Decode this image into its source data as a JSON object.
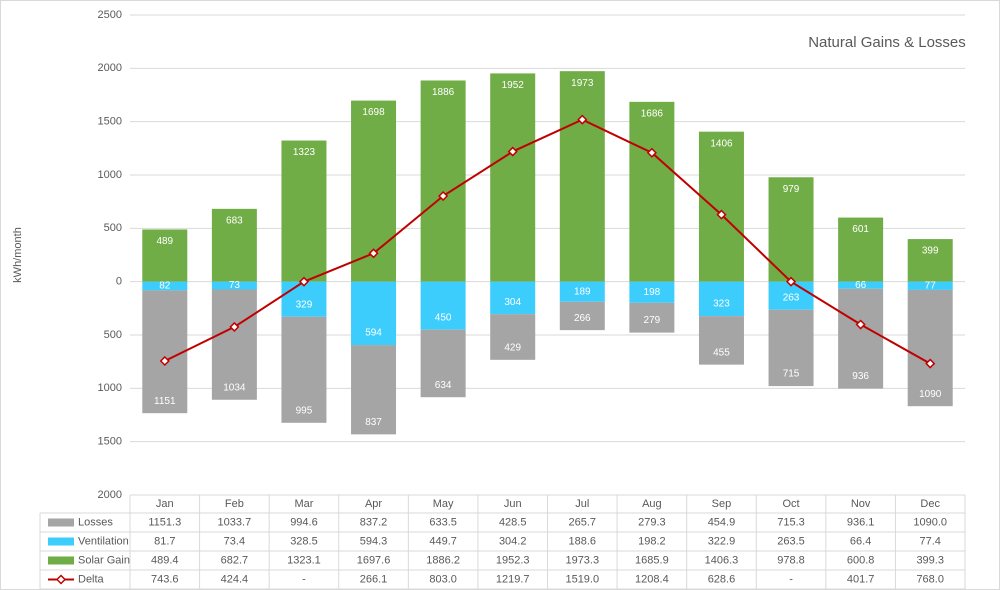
{
  "chart_data": {
    "type": "bar",
    "title": "Natural Gains & Losses",
    "y_label": "kWh/month",
    "categories": [
      "Jan",
      "Feb",
      "Mar",
      "Apr",
      "May",
      "Jun",
      "Jul",
      "Aug",
      "Sep",
      "Oct",
      "Nov",
      "Dec"
    ],
    "ylim": [
      -2000,
      2500
    ],
    "yticks": [
      {
        "value": -2000,
        "label": "2000"
      },
      {
        "value": -1500,
        "label": "1500"
      },
      {
        "value": -1000,
        "label": "1000"
      },
      {
        "value": -500,
        "label": "500"
      },
      0,
      500,
      1000,
      1500,
      2000,
      2500
    ],
    "grid": true,
    "series": [
      {
        "name": "Losses",
        "type": "bar",
        "color": "#a5a5a5",
        "values": [
          -1151.3,
          -1033.7,
          -994.6,
          -837.2,
          -633.5,
          -428.5,
          -265.7,
          -279.3,
          -454.9,
          -715.3,
          -936.1,
          -1090.0
        ],
        "value_labels": [
          "1151",
          "1034",
          "995",
          "837",
          "634",
          "429",
          "266",
          "279",
          "455",
          "715",
          "936",
          "1090"
        ],
        "table_labels": [
          "1151.3",
          "1033.7",
          "994.6",
          "837.2",
          "633.5",
          "428.5",
          "265.7",
          "279.3",
          "454.9",
          "715.3",
          "936.1",
          "1090.0"
        ]
      },
      {
        "name": "Ventilation",
        "type": "bar",
        "color": "#3dcdfd",
        "values": [
          -81.7,
          -73.4,
          -328.5,
          -594.3,
          -449.7,
          -304.2,
          -188.6,
          -198.2,
          -322.9,
          -263.5,
          -66.4,
          -77.4
        ],
        "value_labels": [
          "82",
          "73",
          "329",
          "594",
          "450",
          "304",
          "189",
          "198",
          "323",
          "263",
          "66",
          "77"
        ],
        "table_labels": [
          "81.7",
          "73.4",
          "328.5",
          "594.3",
          "449.7",
          "304.2",
          "188.6",
          "198.2",
          "322.9",
          "263.5",
          "66.4",
          "77.4"
        ]
      },
      {
        "name": "Solar Gain",
        "type": "bar",
        "color": "#70ad47",
        "values": [
          489.4,
          682.7,
          1323.1,
          1697.6,
          1886.2,
          1952.3,
          1973.3,
          1685.9,
          1406.3,
          978.8,
          600.8,
          399.3
        ],
        "value_labels": [
          "489",
          "683",
          "1323",
          "1698",
          "1886",
          "1952",
          "1973",
          "1686",
          "1406",
          "979",
          "601",
          "399"
        ],
        "table_labels": [
          "489.4",
          "682.7",
          "1323.1",
          "1697.6",
          "1886.2",
          "1952.3",
          "1973.3",
          "1685.9",
          "1406.3",
          "978.8",
          "600.8",
          "399.3"
        ]
      },
      {
        "name": "Delta",
        "type": "line",
        "color": "#c00000",
        "values": [
          -743.6,
          -424.4,
          0,
          266.1,
          803.0,
          1219.7,
          1519.0,
          1208.4,
          628.6,
          0,
          -401.7,
          -768.0
        ],
        "table_labels": [
          "743.6",
          "424.4",
          "-",
          "266.1",
          "803.0",
          "1219.7",
          "1519.0",
          "1208.4",
          "628.6",
          "-",
          "401.7",
          "768.0"
        ]
      }
    ]
  }
}
